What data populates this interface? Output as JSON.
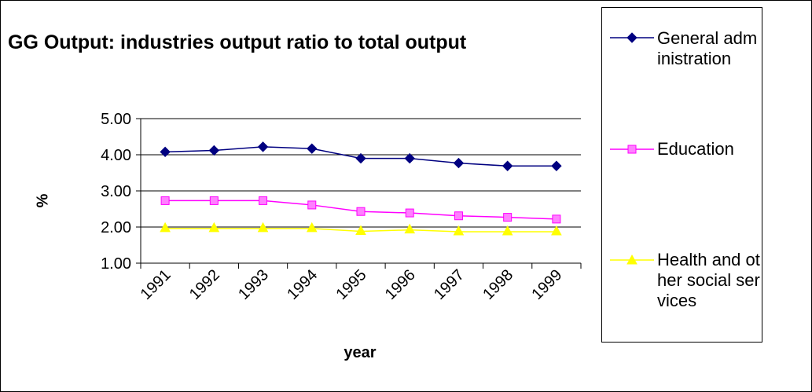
{
  "chart_data": {
    "type": "line",
    "title": "GG Output: industries output ratio to total output",
    "xlabel": "year",
    "ylabel": "%",
    "categories": [
      "1991",
      "1992",
      "1993",
      "1994",
      "1995",
      "1996",
      "1997",
      "1998",
      "1999"
    ],
    "ylim": [
      1.0,
      5.0
    ],
    "yticks": [
      "1.00",
      "2.00",
      "3.00",
      "4.00",
      "5.00"
    ],
    "grid": true,
    "legend_position": "right",
    "series": [
      {
        "name": "General administration",
        "marker": "diamond",
        "color": "#000080",
        "values": [
          4.08,
          4.12,
          4.22,
          4.17,
          3.9,
          3.9,
          3.77,
          3.69,
          3.69
        ]
      },
      {
        "name": "Education",
        "marker": "square",
        "color": "#ff00ff",
        "values": [
          2.73,
          2.73,
          2.73,
          2.61,
          2.43,
          2.39,
          2.31,
          2.27,
          2.22
        ]
      },
      {
        "name": "Health and other social services",
        "marker": "triangle",
        "color": "#ffff00",
        "values": [
          1.96,
          1.96,
          1.96,
          1.96,
          1.88,
          1.92,
          1.87,
          1.87,
          1.87
        ]
      }
    ]
  },
  "legend": {
    "items": [
      {
        "text": "General administration"
      },
      {
        "text": "Education"
      },
      {
        "text": "Health and other social services"
      }
    ]
  }
}
